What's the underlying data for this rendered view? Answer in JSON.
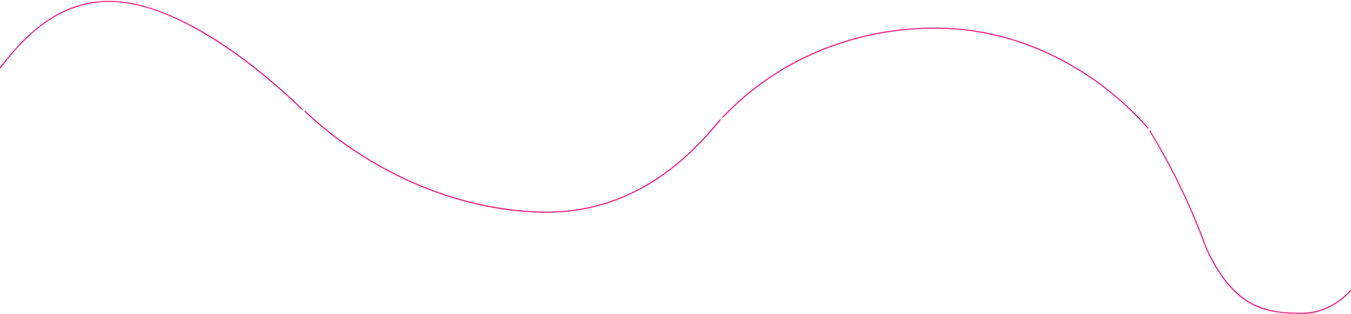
{
  "decoration": {
    "type": "wavy-line",
    "stroke_color": "#ee1a7a",
    "background_color": "#ffffff",
    "segments": 4
  }
}
